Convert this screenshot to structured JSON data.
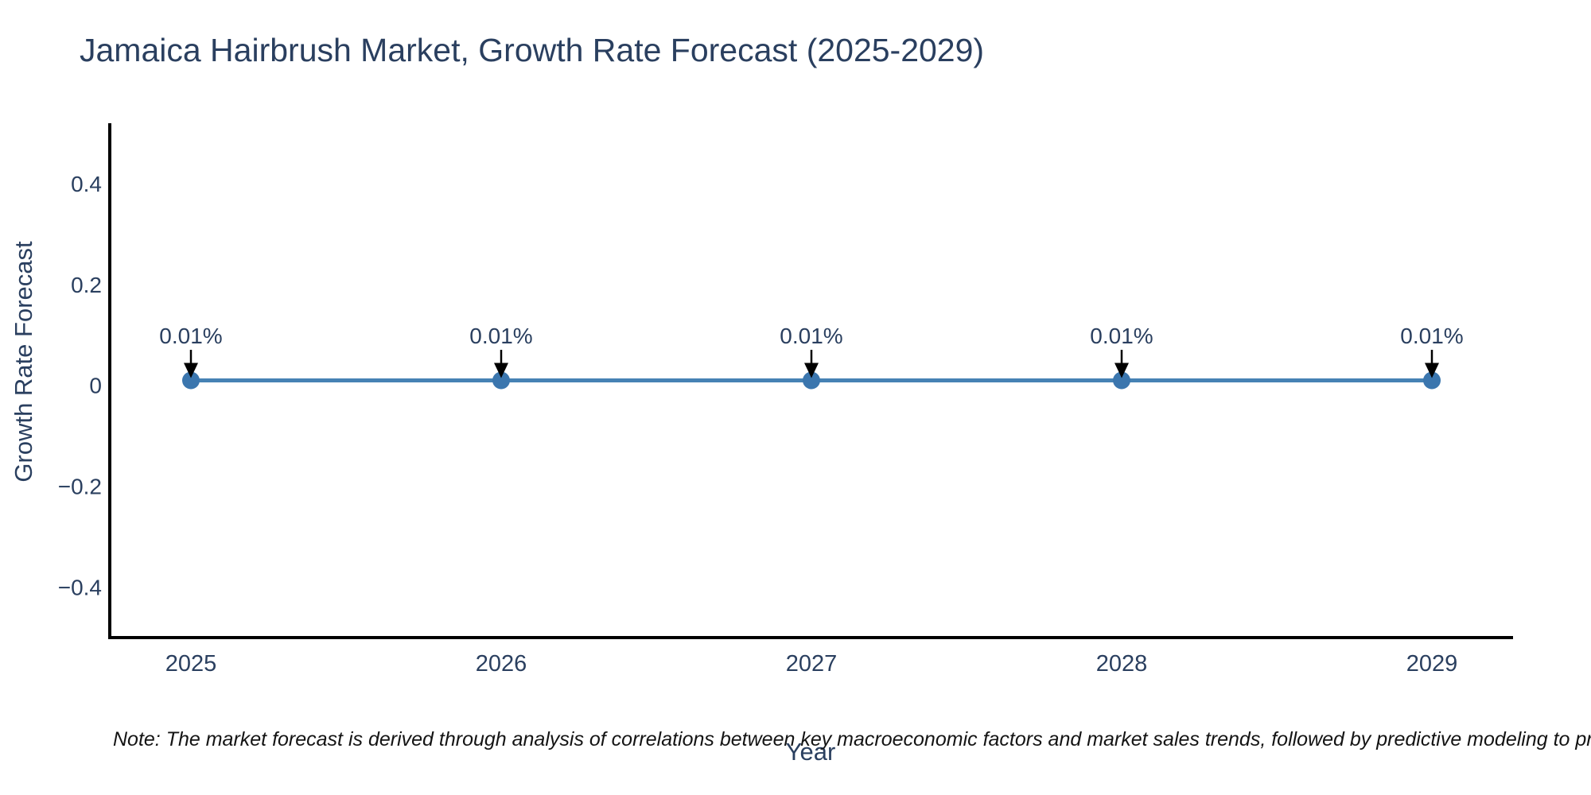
{
  "page": {
    "background": "#ffffff",
    "text_color": "#2a3f5f"
  },
  "header": {
    "title": "Jamaica Hairbrush Market, Growth Rate Forecast (2025-2029)"
  },
  "chart_data": {
    "type": "line",
    "title": "Jamaica Hairbrush Market, Growth Rate Forecast (2025-2029)",
    "x": [
      2025,
      2026,
      2027,
      2028,
      2029
    ],
    "categories": [
      "2025",
      "2026",
      "2027",
      "2028",
      "2029"
    ],
    "series": [
      {
        "name": "Growth Rate Forecast",
        "values": [
          0.01,
          0.01,
          0.01,
          0.01,
          0.01
        ],
        "unit": "%"
      }
    ],
    "point_labels": [
      "0.01%",
      "0.01%",
      "0.01%",
      "0.01%",
      "0.01%"
    ],
    "xlabel": "Year",
    "ylabel": "Growth Rate Forecast",
    "ylim": [
      -0.5,
      0.52
    ],
    "yticks": [
      0.4,
      0.2,
      0,
      -0.2,
      -0.4
    ],
    "yticklabels": [
      "0.4",
      "0.2",
      "0",
      "−0.2",
      "−0.4"
    ],
    "grid": false,
    "legend": false,
    "line_color": "#4682b4",
    "marker_color": "#3b76ae",
    "axis_color": "#000000",
    "tick_label_color": "#2a3f5f",
    "annotation_color": "#2a3f5f",
    "annotation_arrow_color": "#000000"
  },
  "note": {
    "text": "Note: The market forecast is derived through analysis of correlations between key macroeconomic factors and market sales trends, followed by predictive modeling to project future sa"
  }
}
